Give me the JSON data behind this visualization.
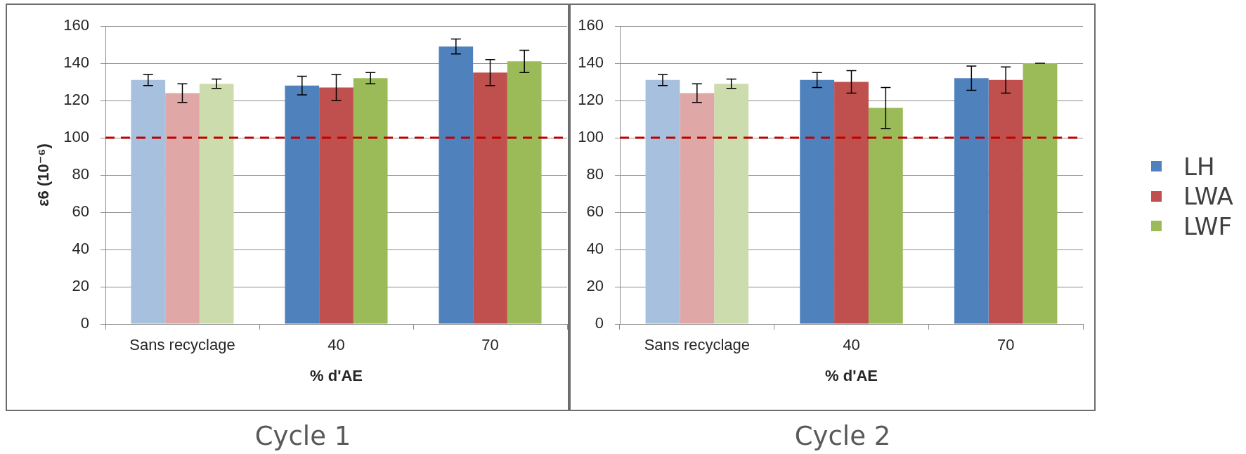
{
  "chart_data": [
    {
      "type": "bar",
      "title": "Cycle 1",
      "xlabel": "% d'AE",
      "ylabel": "ε6 (10⁻⁶)",
      "categories": [
        "Sans recyclage",
        "40",
        "70"
      ],
      "series": [
        {
          "colors": [
            "#a7c0de",
            "#4f81bd",
            "#4f81bd"
          ],
          "values": [
            131,
            128,
            149
          ],
          "errors": [
            3,
            5,
            4
          ]
        },
        {
          "colors": [
            "#dfa7a6",
            "#c0504d",
            "#c0504d"
          ],
          "values": [
            124,
            127,
            135
          ],
          "errors": [
            5,
            7,
            7
          ]
        },
        {
          "colors": [
            "#cddcac",
            "#9bbb59",
            "#9bbb59"
          ],
          "values": [
            129,
            132,
            141
          ],
          "errors": [
            2.5,
            3,
            6
          ]
        }
      ],
      "ylim": [
        0,
        160
      ],
      "yticks": [
        0,
        20,
        40,
        60,
        80,
        100,
        120,
        140,
        160
      ],
      "grid": "y",
      "ref_lines": [
        {
          "axis": "y",
          "value": 100,
          "color": "#c00000",
          "line_style": "dashed"
        }
      ]
    },
    {
      "type": "bar",
      "title": "Cycle 2",
      "xlabel": "% d'AE",
      "categories": [
        "Sans recyclage",
        "40",
        "70"
      ],
      "series": [
        {
          "name": "LH",
          "color": "#4f81bd",
          "colors": [
            "#a7c0de",
            "#4f81bd",
            "#4f81bd"
          ],
          "values": [
            131,
            131,
            132
          ],
          "errors": [
            3,
            4,
            6.5
          ]
        },
        {
          "name": "LWA",
          "color": "#c0504d",
          "colors": [
            "#dfa7a6",
            "#c0504d",
            "#c0504d"
          ],
          "values": [
            124,
            130,
            131
          ],
          "errors": [
            5,
            6,
            7
          ]
        },
        {
          "name": "LWF",
          "color": "#9bbb59",
          "colors": [
            "#cddcac",
            "#9bbb59",
            "#9bbb59"
          ],
          "values": [
            129,
            116,
            140
          ],
          "errors": [
            2.5,
            11,
            0
          ]
        }
      ],
      "ylim": [
        0,
        160
      ],
      "yticks": [
        0,
        20,
        40,
        60,
        80,
        100,
        120,
        140,
        160
      ],
      "grid": "y",
      "legend": "right",
      "ref_lines": [
        {
          "axis": "y",
          "value": 100,
          "color": "#c00000",
          "line_style": "dashed"
        }
      ]
    }
  ]
}
